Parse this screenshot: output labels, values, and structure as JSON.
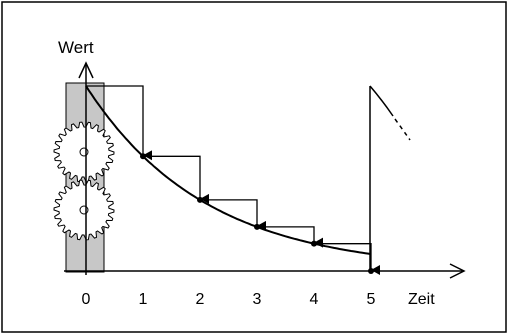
{
  "axes": {
    "y_label": "Wert",
    "x_label": "Zeit",
    "x_ticks": [
      "0",
      "1",
      "2",
      "3",
      "4",
      "5"
    ]
  },
  "colors": {
    "line": "#000000",
    "gear_panel": "#c7c7c7",
    "background": "#ffffff"
  }
}
